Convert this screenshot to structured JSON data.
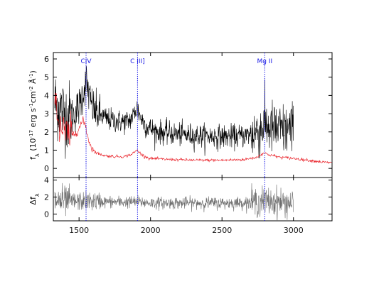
{
  "chart_data": {
    "type": "line",
    "xlim": [
      1320,
      3270
    ],
    "panels": [
      {
        "id": "top",
        "ylabel_main": "f",
        "ylabel_sub": "λ",
        "ylabel_tail": " (10",
        "ylabel_exp": "-17",
        "ylabel_units1": " erg s",
        "ylabel_exp2": "-1",
        "ylabel_units2": "cm",
        "ylabel_exp3": "-2",
        "ylabel_units3": " Å",
        "ylabel_exp4": "-1",
        "ylabel_close": ")",
        "ylim": [
          -0.5,
          6.35
        ],
        "yticks": [
          0,
          1,
          2,
          3,
          4,
          5,
          6
        ],
        "series": [
          {
            "color": "#000000",
            "x_range": [
              1330,
              3000
            ],
            "style": "noisy",
            "anchors": [
              [
                1330,
                3.6
              ],
              [
                1380,
                3.2
              ],
              [
                1420,
                2.9
              ],
              [
                1460,
                2.9
              ],
              [
                1500,
                3.4
              ],
              [
                1530,
                4.2
              ],
              [
                1550,
                4.8
              ],
              [
                1575,
                3.8
              ],
              [
                1610,
                3.1
              ],
              [
                1650,
                2.9
              ],
              [
                1700,
                2.7
              ],
              [
                1750,
                2.6
              ],
              [
                1800,
                2.55
              ],
              [
                1850,
                2.6
              ],
              [
                1880,
                2.9
              ],
              [
                1905,
                3.35
              ],
              [
                1930,
                2.8
              ],
              [
                1970,
                2.3
              ],
              [
                2050,
                2.0
              ],
              [
                2150,
                1.9
              ],
              [
                2300,
                1.8
              ],
              [
                2450,
                1.75
              ],
              [
                2600,
                1.75
              ],
              [
                2700,
                1.85
              ],
              [
                2760,
                2.1
              ],
              [
                2800,
                2.4
              ],
              [
                2840,
                2.2
              ],
              [
                2900,
                2.1
              ],
              [
                3000,
                2.1
              ]
            ]
          },
          {
            "color": "#e8141c",
            "x_range": [
              1330,
              3270
            ],
            "style": "smooth",
            "anchors": [
              [
                1330,
                5.0
              ],
              [
                1345,
                3.2
              ],
              [
                1360,
                2.4
              ],
              [
                1390,
                2.0
              ],
              [
                1430,
                1.8
              ],
              [
                1470,
                1.9
              ],
              [
                1500,
                2.2
              ],
              [
                1525,
                2.6
              ],
              [
                1545,
                2.4
              ],
              [
                1565,
                1.6
              ],
              [
                1590,
                1.1
              ],
              [
                1620,
                0.85
              ],
              [
                1680,
                0.7
              ],
              [
                1750,
                0.65
              ],
              [
                1820,
                0.65
              ],
              [
                1870,
                0.78
              ],
              [
                1905,
                1.0
              ],
              [
                1940,
                0.75
              ],
              [
                1990,
                0.55
              ],
              [
                2100,
                0.5
              ],
              [
                2300,
                0.45
              ],
              [
                2500,
                0.45
              ],
              [
                2650,
                0.48
              ],
              [
                2740,
                0.6
              ],
              [
                2790,
                0.85
              ],
              [
                2830,
                0.75
              ],
              [
                2900,
                0.62
              ],
              [
                3000,
                0.55
              ],
              [
                3100,
                0.45
              ],
              [
                3200,
                0.35
              ],
              [
                3270,
                0.3
              ]
            ]
          }
        ]
      },
      {
        "id": "bottom",
        "ylabel_main": "Δf",
        "ylabel_sub": "λ",
        "ylim": [
          -0.8,
          4.3
        ],
        "yticks": [
          0,
          2,
          4
        ],
        "series": [
          {
            "color": "#6e6e6e",
            "x_range": [
              1330,
              3000
            ],
            "style": "noisy",
            "anchors": [
              [
                1330,
                1.6
              ],
              [
                1450,
                1.45
              ],
              [
                1550,
                1.55
              ],
              [
                1650,
                1.45
              ],
              [
                1800,
                1.4
              ],
              [
                1905,
                1.45
              ],
              [
                2000,
                1.3
              ],
              [
                2300,
                1.3
              ],
              [
                2600,
                1.3
              ],
              [
                2800,
                1.5
              ],
              [
                3000,
                1.3
              ]
            ]
          }
        ]
      }
    ],
    "xticks": [
      1500,
      2000,
      2500,
      3000
    ],
    "emission_lines": [
      {
        "label": "CIV",
        "x": 1549
      },
      {
        "label": "C III]",
        "x": 1909
      },
      {
        "label": "Mg II",
        "x": 2799
      }
    ],
    "line_marker_color": "#1b1be6"
  }
}
